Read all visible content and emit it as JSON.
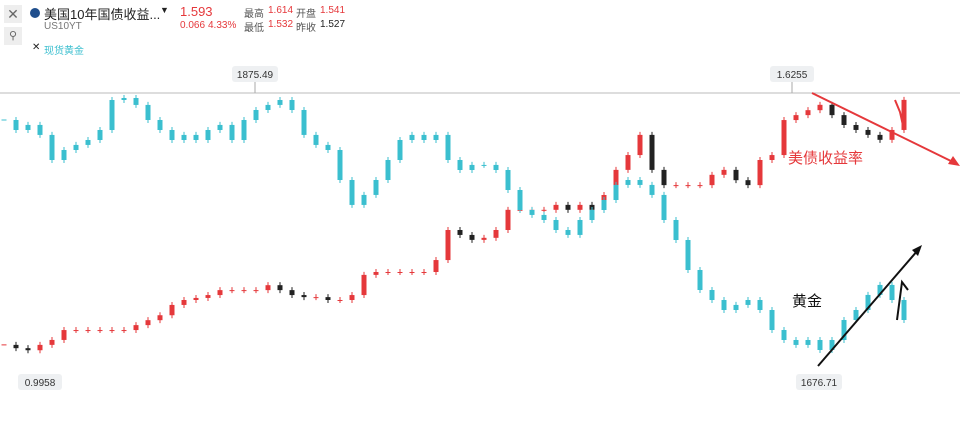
{
  "header": {
    "title": "美国10年国债收益...",
    "symbol": "US10YT",
    "price": "1.593",
    "change": "0.066",
    "change_pct": "4.33%",
    "stats": [
      [
        "最高",
        "1.614"
      ],
      [
        "开盘",
        "1.541"
      ],
      [
        "最低",
        "1.532"
      ],
      [
        "昨收",
        "1.527"
      ]
    ],
    "compare": "现货黄金"
  },
  "chart_data": {
    "type": "candlestick",
    "ylim": [
      0.96,
      1.64
    ],
    "y2lim": [
      1670,
      1880
    ],
    "series": [
      {
        "color": "#e5383b",
        "down_color": "#222222",
        "values": [
          1.021,
          1.013,
          1.008,
          1.021,
          1.033,
          1.057,
          1.057,
          1.057,
          1.057,
          1.057,
          1.057,
          1.069,
          1.081,
          1.093,
          1.118,
          1.13,
          1.135,
          1.142,
          1.154,
          1.154,
          1.154,
          1.154,
          1.166,
          1.154,
          1.142,
          1.137,
          1.137,
          1.13,
          1.13,
          1.142,
          1.191,
          1.198,
          1.198,
          1.198,
          1.198,
          1.198,
          1.227,
          1.3,
          1.288,
          1.276,
          1.281,
          1.3,
          1.349,
          1.349,
          1.349,
          1.349,
          1.361,
          1.349,
          1.361,
          1.349,
          1.385,
          1.446,
          1.482,
          1.531,
          1.446,
          1.409,
          1.409,
          1.409,
          1.409,
          1.434,
          1.446,
          1.421,
          1.409,
          1.47,
          1.482,
          1.567,
          1.579,
          1.591,
          1.604,
          1.579,
          1.555,
          1.543,
          1.531,
          1.519,
          1.543,
          1.616
        ]
      },
      {
        "color": "#3bbfcf",
        "down_color": "#3bbfcf",
        "axis": "y2",
        "values": [
          1857.5,
          1850,
          1853.8,
          1846.3,
          1827.5,
          1835,
          1838.8,
          1842.5,
          1850,
          1872.5,
          1874,
          1868.8,
          1857.5,
          1850,
          1842.5,
          1846.3,
          1842.5,
          1850,
          1853.8,
          1842.5,
          1857.5,
          1865,
          1868.8,
          1872.5,
          1865,
          1846.3,
          1838.8,
          1835,
          1812.5,
          1793.8,
          1801.3,
          1812.5,
          1827.5,
          1842.5,
          1846.3,
          1842.5,
          1846.3,
          1827.5,
          1820,
          1823.8,
          1823.8,
          1820,
          1805,
          1790,
          1786.3,
          1782.5,
          1775,
          1771.3,
          1782.5,
          1790,
          1797.5,
          1808.8,
          1812.5,
          1808.8,
          1801.3,
          1782.5,
          1767.5,
          1745,
          1730,
          1722.5,
          1715,
          1718.8,
          1722.5,
          1715,
          1700,
          1692.5,
          1688.8,
          1692.5,
          1685,
          1692.5,
          1707.5,
          1715,
          1726.3,
          1733.8,
          1722.5,
          1707.5
        ]
      }
    ],
    "annotations": [
      "1875.49",
      "1.6255",
      "0.9958",
      "1676.71",
      "美债收益率",
      "黄金"
    ]
  }
}
